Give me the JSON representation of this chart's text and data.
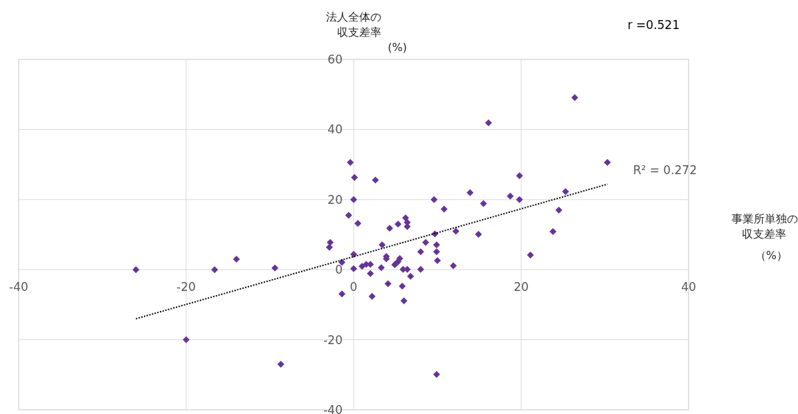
{
  "chart_data": {
    "type": "scatter",
    "xlabel": "事業所単独の収支差率（%）",
    "ylabel": "法人全体の収支差率(%)",
    "annotations": [
      "r =0.521",
      {
        "text": "R² = 0.272",
        "x": 30.3,
        "y": 24.4
      }
    ],
    "xlim": [
      -40,
      40
    ],
    "ylim": [
      -40,
      60
    ],
    "xticks": [
      -40,
      -20,
      0,
      20,
      40
    ],
    "yticks": [
      -40,
      -20,
      0,
      20,
      40,
      60
    ],
    "grid": true,
    "marker": "diamond",
    "series": [
      {
        "color": "#66339a",
        "x": [
          -26,
          -20,
          -16.6,
          -14,
          -9.4,
          -8.7,
          -2.9,
          -2.8,
          -1.4,
          -1.4,
          -0.6,
          -0.4,
          0,
          0.1,
          0.5,
          0,
          0,
          1.0,
          1.5,
          2.0,
          2.0,
          2.2,
          2.6,
          3.3,
          3.4,
          3.9,
          3.9,
          4.1,
          4.3,
          4.9,
          5.1,
          5.3,
          5.5,
          5.3,
          5.8,
          5.9,
          6.0,
          6.2,
          6.4,
          6.4,
          6.4,
          6.8,
          8.0,
          8.0,
          8.6,
          9.6,
          9.7,
          9.9,
          9.9,
          10.0,
          9.9,
          10.8,
          11.9,
          12.2,
          13.9,
          14.9,
          15.5,
          16.1,
          18.7,
          19.8,
          19.8,
          21.1,
          23.8,
          24.5,
          25.3,
          26.4,
          30.3
        ],
        "values": [
          0,
          -20,
          0,
          3,
          0.5,
          -27,
          6.4,
          7.8,
          2.1,
          -6.9,
          15.5,
          30.6,
          20,
          26.3,
          13.2,
          4.4,
          0.3,
          1.0,
          1.5,
          1.5,
          -1.1,
          -7.6,
          25.6,
          0.6,
          7.1,
          3.8,
          3.1,
          -4.0,
          11.8,
          1.4,
          1.8,
          2.3,
          3.2,
          13.0,
          -4.7,
          0.1,
          -8.9,
          14.8,
          13.5,
          12.3,
          0.1,
          -1.9,
          5.1,
          0.1,
          7.8,
          20,
          10.2,
          7.1,
          5.1,
          2.6,
          -29.9,
          17.3,
          1.1,
          11.0,
          22.0,
          10.1,
          18.9,
          41.9,
          21.0,
          20.0,
          26.8,
          4.2,
          10.9,
          17.0,
          22.3,
          49.1,
          30.6
        ]
      },
      {
        "type": "line",
        "color": "#000000",
        "line_style": "dotted",
        "marker": "none",
        "x": [
          -26,
          30.3
        ],
        "values": [
          -14.0,
          24.4
        ]
      }
    ]
  }
}
